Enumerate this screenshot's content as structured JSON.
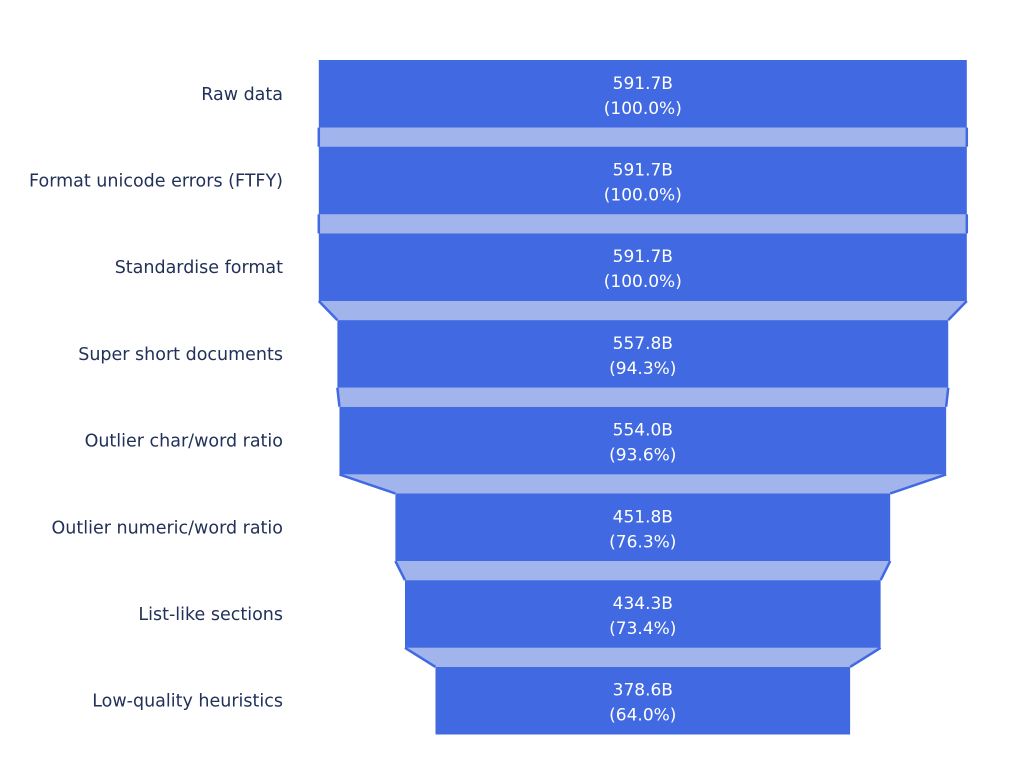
{
  "chart_data": {
    "type": "funnel",
    "title": "",
    "legend": "none",
    "grid": "off",
    "orientation": "horizontal-centered",
    "stages": [
      {
        "label": "Raw data",
        "value": 591.7,
        "value_text": "591.7B",
        "pct": 100.0,
        "pct_text": "(100.0%)"
      },
      {
        "label": "Format unicode errors (FTFY)",
        "value": 591.7,
        "value_text": "591.7B",
        "pct": 100.0,
        "pct_text": "(100.0%)"
      },
      {
        "label": "Standardise format",
        "value": 591.7,
        "value_text": "591.7B",
        "pct": 100.0,
        "pct_text": "(100.0%)"
      },
      {
        "label": "Super short documents",
        "value": 557.8,
        "value_text": "557.8B",
        "pct": 94.3,
        "pct_text": "(94.3%)"
      },
      {
        "label": "Outlier char/word ratio",
        "value": 554.0,
        "value_text": "554.0B",
        "pct": 93.6,
        "pct_text": "(93.6%)"
      },
      {
        "label": "Outlier numeric/word ratio",
        "value": 451.8,
        "value_text": "451.8B",
        "pct": 76.3,
        "pct_text": "(76.3%)"
      },
      {
        "label": "List-like sections",
        "value": 434.3,
        "value_text": "434.3B",
        "pct": 73.4,
        "pct_text": "(73.4%)"
      },
      {
        "label": "Low-quality heuristics",
        "value": 378.6,
        "value_text": "378.6B",
        "pct": 64.0,
        "pct_text": "(64.0%)"
      }
    ],
    "colors": {
      "bar_fill": "#4169E1",
      "connector_fill": "#A2B4EC",
      "connector_line": "#4169E1",
      "inside_text": "#FFFFFF",
      "label_text": "#223159",
      "background": "#FFFFFF"
    }
  }
}
